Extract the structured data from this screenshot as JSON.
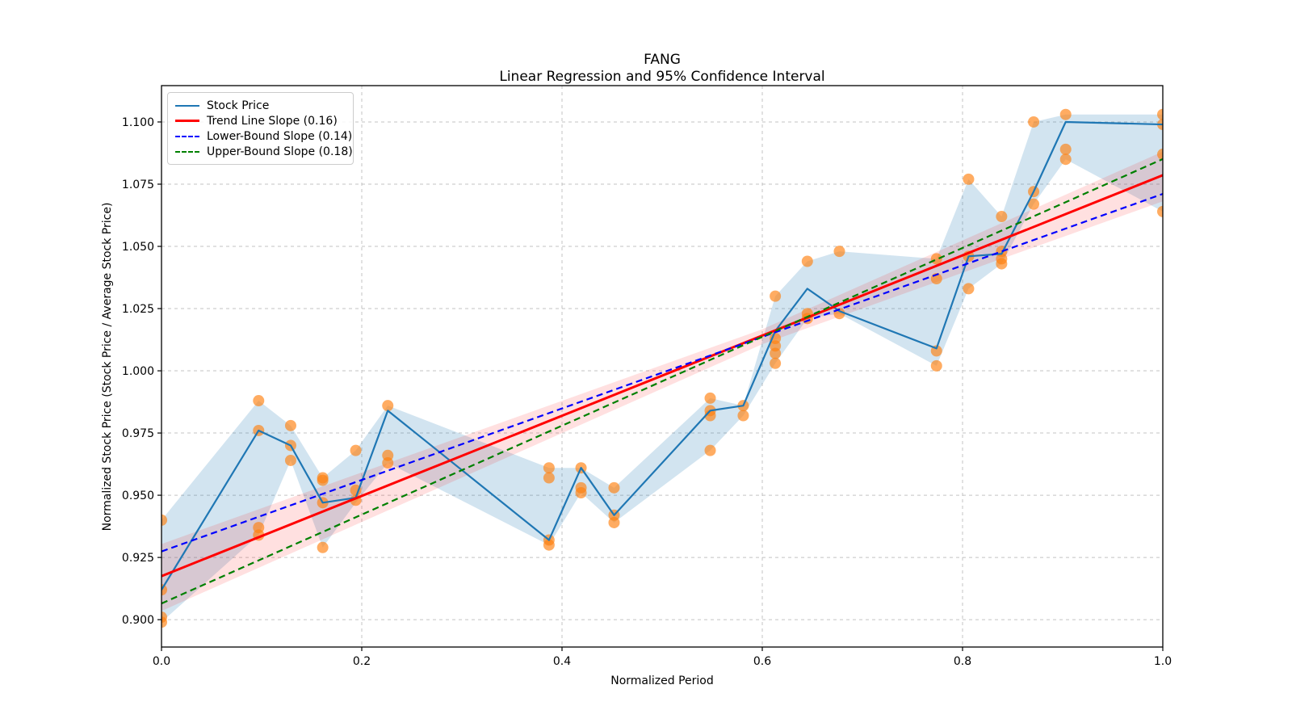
{
  "chart_data": {
    "type": "line",
    "title": "FANG",
    "subtitle": "Linear Regression and 95% Confidence Interval",
    "xlabel": "Normalized Period",
    "ylabel": "Normalized Stock Price (Stock Price / Average Stock Price)",
    "xlim": [
      0.0,
      1.0
    ],
    "ylim": [
      0.889,
      1.1146
    ],
    "grid": true,
    "grid_style": "dashed",
    "legend_position": "upper left",
    "x_ticks": [
      0.0,
      0.2,
      0.4,
      0.6,
      0.8,
      1.0
    ],
    "x_tick_labels": [
      "0.0",
      "0.2",
      "0.4",
      "0.6",
      "0.8",
      "1.0"
    ],
    "y_ticks": [
      0.9,
      0.925,
      0.95,
      0.975,
      1.0,
      1.025,
      1.05,
      1.075,
      1.1
    ],
    "y_tick_labels": [
      "0.900",
      "0.925",
      "0.950",
      "0.975",
      "1.000",
      "1.025",
      "1.050",
      "1.075",
      "1.100"
    ],
    "legend": [
      "Stock Price",
      "Trend Line Slope (0.16)",
      "Lower-Bound Slope (0.14)",
      "Upper-Bound Slope (0.18)"
    ],
    "x": [
      0.0,
      0.097,
      0.129,
      0.161,
      0.194,
      0.226,
      0.387,
      0.419,
      0.452,
      0.548,
      0.581,
      0.613,
      0.645,
      0.677,
      0.774,
      0.806,
      0.839,
      0.871,
      0.903,
      1.0
    ],
    "stock_line": [
      0.912,
      0.976,
      0.97,
      0.947,
      0.949,
      0.984,
      0.932,
      0.961,
      0.942,
      0.984,
      0.986,
      1.016,
      1.033,
      1.024,
      1.009,
      1.046,
      1.047,
      1.072,
      1.1,
      1.099
    ],
    "minmax_band": {
      "upper": [
        0.94,
        0.988,
        0.978,
        0.957,
        0.968,
        0.986,
        0.961,
        0.961,
        0.953,
        0.989,
        0.986,
        1.03,
        1.044,
        1.048,
        1.045,
        1.077,
        1.062,
        1.1,
        1.103,
        1.103
      ],
      "lower": [
        0.899,
        0.934,
        0.964,
        0.929,
        0.947,
        0.963,
        0.93,
        0.951,
        0.939,
        0.968,
        0.982,
        1.003,
        1.021,
        1.023,
        1.002,
        1.033,
        1.043,
        1.067,
        1.085,
        1.064
      ]
    },
    "scatter": [
      {
        "x": 0.0,
        "y": [
          0.94,
          0.912,
          0.901,
          0.899
        ]
      },
      {
        "x": 0.097,
        "y": [
          0.988,
          0.976,
          0.937,
          0.934
        ]
      },
      {
        "x": 0.129,
        "y": [
          0.978,
          0.97,
          0.964
        ]
      },
      {
        "x": 0.161,
        "y": [
          0.957,
          0.956,
          0.947,
          0.929
        ]
      },
      {
        "x": 0.194,
        "y": [
          0.968,
          0.952,
          0.948
        ]
      },
      {
        "x": 0.226,
        "y": [
          0.986,
          0.966,
          0.963
        ]
      },
      {
        "x": 0.387,
        "y": [
          0.961,
          0.957,
          0.932,
          0.93
        ]
      },
      {
        "x": 0.419,
        "y": [
          0.961,
          0.953,
          0.951
        ]
      },
      {
        "x": 0.452,
        "y": [
          0.953,
          0.942,
          0.939
        ]
      },
      {
        "x": 0.548,
        "y": [
          0.989,
          0.984,
          0.982,
          0.968
        ]
      },
      {
        "x": 0.581,
        "y": [
          0.986,
          0.982
        ]
      },
      {
        "x": 0.613,
        "y": [
          1.03,
          1.013,
          1.01,
          1.007,
          1.003
        ]
      },
      {
        "x": 0.645,
        "y": [
          1.044,
          1.023,
          1.021
        ]
      },
      {
        "x": 0.677,
        "y": [
          1.048,
          1.023
        ]
      },
      {
        "x": 0.774,
        "y": [
          1.045,
          1.037,
          1.008,
          1.002
        ]
      },
      {
        "x": 0.806,
        "y": [
          1.077,
          1.046,
          1.033
        ]
      },
      {
        "x": 0.839,
        "y": [
          1.062,
          1.048,
          1.045,
          1.043
        ]
      },
      {
        "x": 0.871,
        "y": [
          1.1,
          1.072,
          1.067
        ]
      },
      {
        "x": 0.903,
        "y": [
          1.103,
          1.089,
          1.085
        ]
      },
      {
        "x": 1.0,
        "y": [
          1.103,
          1.099,
          1.087,
          1.064
        ]
      }
    ],
    "trend_line": {
      "label": "Trend Line Slope (0.16)",
      "slope": 0.16,
      "y_at_0": 0.9175,
      "y_at_1": 1.0786
    },
    "lower_bound": {
      "label": "Lower-Bound Slope (0.14)",
      "slope": 0.14,
      "y_at_0": 0.9274,
      "y_at_1": 1.0711
    },
    "upper_bound": {
      "label": "Upper-Bound Slope (0.18)",
      "slope": 0.18,
      "y_at_0": 0.9065,
      "y_at_1": 1.0851
    },
    "ci_band": {
      "upper": [
        [
          0.0,
          0.9304
        ],
        [
          0.6,
          1.0167
        ],
        [
          1.0,
          1.0881
        ]
      ],
      "lower": [
        [
          0.0,
          0.9035
        ],
        [
          0.6,
          1.0107
        ],
        [
          1.0,
          1.0681
        ]
      ]
    },
    "colors": {
      "stock_line": "#1f77b4",
      "scatter": "#ff7f0e",
      "minmax_band": "#1f77b4",
      "trend": "#ff0000",
      "lower_bound": "#0000ff",
      "upper_bound": "#008000",
      "ci_band": "#ff0000",
      "grid": "#b0b0b0"
    }
  }
}
